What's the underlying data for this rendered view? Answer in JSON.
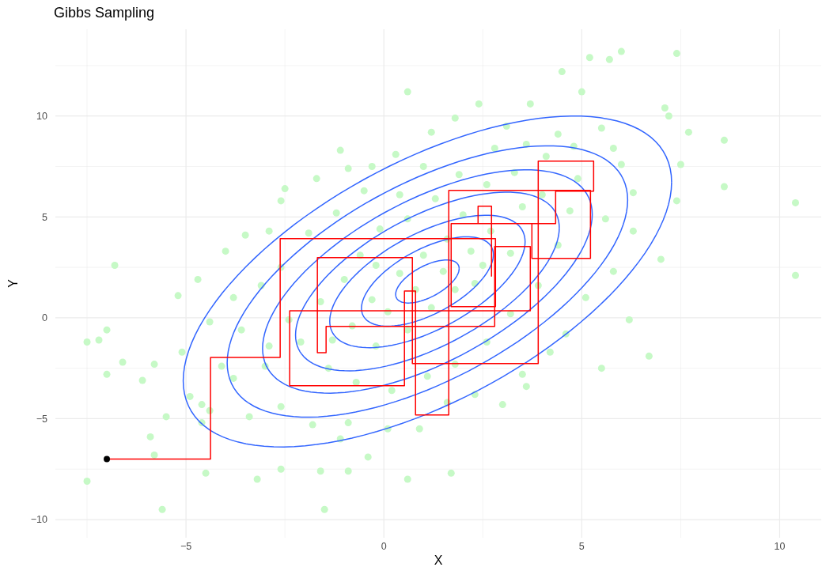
{
  "chart_data": {
    "type": "scatter",
    "title": "Gibbs Sampling",
    "xlabel": "X",
    "ylabel": "Y",
    "xlim": [
      -8.3,
      11.05
    ],
    "ylim": [
      -10.9,
      14.3
    ],
    "xticks": [
      {
        "value": -7.5,
        "label": null
      },
      -5,
      {
        "value": -2.5,
        "label": null
      },
      0,
      {
        "value": 2.5,
        "label": null
      },
      5,
      {
        "value": 7.5,
        "label": null
      },
      10
    ],
    "yticks": [
      -10,
      {
        "value": -7.5,
        "label": null
      },
      -5,
      {
        "value": -2.5,
        "label": null
      },
      0,
      {
        "value": 2.5,
        "label": null
      },
      5,
      {
        "value": 7.5,
        "label": null
      },
      10,
      {
        "value": 12.5,
        "label": null
      }
    ],
    "grid": true,
    "series": [
      {
        "color": "#c6f9c6",
        "x": [
          -7.5,
          -7.5,
          -7.2,
          -7,
          -6.8,
          -6.6,
          -7,
          -5.6,
          -5.8,
          -5.9,
          -5.5,
          -4.9,
          -5.1,
          -5.8,
          -6.1,
          -4.6,
          -4.5,
          -3.2,
          -2.6,
          -1.5,
          1.7,
          0.6,
          -0.9,
          -1.6,
          -0.4,
          -5.2,
          -4.7,
          -4,
          -3.5,
          -2.9,
          -2.6,
          -2.5,
          -1.7,
          -0.9,
          -0.3,
          0.3,
          -1.1,
          0.6,
          1.2,
          1.8,
          2.4,
          3.1,
          2.8,
          3.6,
          4.4,
          4.1,
          4.8,
          5.5,
          5,
          3.7,
          4.5,
          5.2,
          5.7,
          6,
          7.4,
          7.1,
          7.2,
          7.7,
          7.5,
          7.4,
          8.6,
          8.6,
          10.4,
          10.4,
          7,
          6.7,
          5.5,
          6.2,
          5.8,
          6.3,
          6,
          6.3,
          5.6,
          5.1,
          4.6,
          4.2,
          3.6,
          3,
          2.3,
          1.6,
          0.9,
          0.1,
          -0.9,
          -1.8,
          -2.6,
          -3.4,
          -3.8,
          -3,
          -3.6,
          -4.4,
          -3.8,
          -3.1,
          -2.6,
          -1.9,
          -1.2,
          -0.5,
          0.4,
          1,
          1.9,
          2.6,
          3.3,
          4,
          4.7,
          4.4,
          3.9,
          3.2,
          2.6,
          1.8,
          1.1,
          0.2,
          -0.7,
          -1.4,
          -2.1,
          -2.4,
          -1.6,
          -1,
          -0.6,
          -0.1,
          0.6,
          1.3,
          2,
          2.7,
          3.2,
          2.5,
          1.8,
          1.2,
          0.6,
          -0.2,
          -0.8,
          -0.3,
          0.4,
          1,
          1.6,
          2.2,
          1.5,
          0.8,
          0.1,
          -1.3,
          -2.9,
          -4.1,
          -4.6,
          -4.4,
          -1.1,
          3.5,
          2.3,
          3.5,
          4.9,
          5.8,
          -0.2
        ],
        "values": [
          -8.1,
          -1.2,
          -1.1,
          -0.6,
          2.6,
          -2.2,
          -2.8,
          -9.5,
          -6.8,
          -5.9,
          -4.9,
          -3.9,
          -1.7,
          -2.3,
          -3.1,
          -4.3,
          -7.7,
          -8,
          -7.5,
          -9.5,
          -7.7,
          -8,
          -7.6,
          -7.6,
          -6.9,
          1.1,
          1.9,
          3.3,
          4.1,
          4.3,
          5.8,
          6.4,
          6.9,
          7.4,
          7.5,
          8.1,
          8.3,
          11.2,
          9.2,
          9.9,
          10.6,
          9.5,
          8.4,
          8.6,
          9.1,
          8,
          8.5,
          9.4,
          11.2,
          10.6,
          12.2,
          12.9,
          12.8,
          13.2,
          13.1,
          10.4,
          10,
          9.2,
          7.6,
          5.8,
          8.8,
          6.5,
          5.7,
          2.1,
          2.9,
          -1.9,
          -2.5,
          -0.1,
          2.3,
          4.3,
          7.6,
          6.2,
          4.9,
          1,
          -0.8,
          -1.7,
          -3.4,
          -4.3,
          -3.8,
          -4.2,
          -5.5,
          -5.5,
          -5.2,
          -5.3,
          -4.4,
          -4.9,
          -3,
          -2.4,
          -0.6,
          -0.2,
          1,
          1.6,
          2.5,
          4.2,
          5.2,
          6.3,
          6.1,
          7.5,
          7.1,
          6.6,
          7.2,
          6.1,
          5.3,
          3.6,
          1.6,
          0.2,
          -1.2,
          -2.3,
          -2.9,
          -3.6,
          -3.2,
          -2.5,
          -1.2,
          -0.1,
          0.8,
          1.9,
          3.1,
          4.4,
          4.9,
          5.9,
          5.1,
          4.3,
          3.2,
          2.6,
          1.4,
          0.5,
          -0.6,
          -1.4,
          -0.4,
          0.9,
          2.2,
          3.1,
          3.9,
          3.3,
          2.3,
          1.4,
          0.3,
          -1.1,
          -1.4,
          -2.4,
          -5.2,
          -4.6,
          -6,
          -2.8,
          1.7,
          5.5,
          6.9,
          8.4,
          2.6
        ]
      },
      {
        "type": "step",
        "color": "#ff0000",
        "x": [
          -7,
          -4.38,
          -2.62,
          2.82,
          1.7,
          3.74,
          5.22,
          1.64,
          0.8,
          0.52,
          -2.38,
          3.7,
          2.8,
          -1.46,
          -1.68,
          0.72,
          3.9,
          5.3,
          4.34,
          2.38,
          2.72
        ],
        "values": [
          -7,
          -1.96,
          3.92,
          0.55,
          4.67,
          2.94,
          6.31,
          -4.82,
          1.33,
          -3.37,
          0.35,
          3.53,
          -0.43,
          -1.73,
          2.98,
          -2.27,
          7.76,
          6.28,
          4.67,
          5.53,
          2.04
        ]
      },
      {
        "type": "scatter",
        "color": "#000000",
        "x": [
          -7
        ],
        "values": [
          -7
        ]
      }
    ]
  }
}
